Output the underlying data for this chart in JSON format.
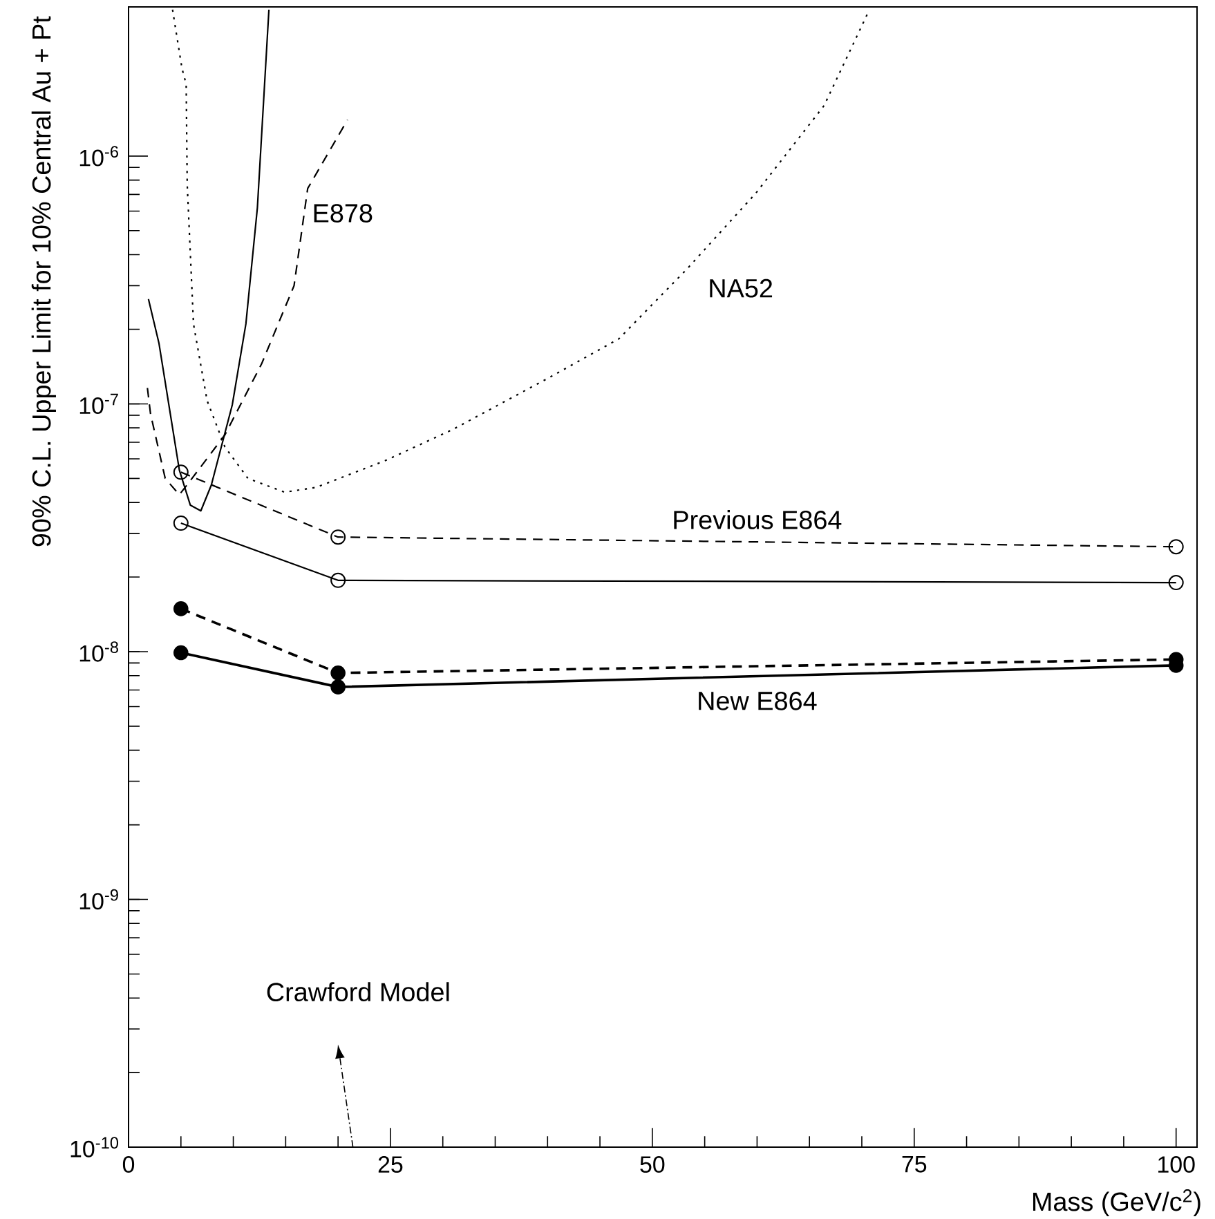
{
  "chart_data": {
    "type": "line",
    "xlabel": "Mass (GeV/c$^{2}$)",
    "ylabel": "90% C.L. Upper Limit for 10% Central Au + Pt",
    "log": "y",
    "grid": false,
    "xlim": [
      0,
      102
    ],
    "ylim": [
      1e-10,
      4e-06
    ],
    "xticks": [
      0,
      25,
      50,
      75,
      100
    ],
    "yticks": [
      {
        "value": 1e-10,
        "label": "10$^{-10}$"
      },
      {
        "value": 1e-09,
        "label": "10$^{-9}$"
      },
      {
        "value": 1e-08,
        "label": "10$^{-8}$"
      },
      {
        "value": 1e-07,
        "label": "10$^{-7}$"
      },
      {
        "value": 1e-06,
        "label": "10$^{-6}$"
      }
    ],
    "annotations": [
      "Crawford Model"
    ],
    "series": [
      {
        "name": "E878",
        "color": "#000000",
        "line_style": "dashed",
        "marker": "none",
        "x": [
          1.8,
          2.1,
          3.5,
          4.85,
          5.9,
          9.2,
          12.7,
          15.8,
          17.1,
          20.9
        ],
        "values": [
          1.16e-07,
          9.1e-08,
          5e-08,
          4.3e-08,
          4.9e-08,
          7.5e-08,
          1.45e-07,
          3e-07,
          7.4e-07,
          1.4e-06
        ]
      },
      {
        "color": "#000000",
        "line_style": "solid",
        "marker": "none",
        "x": [
          1.9,
          2.9,
          4.85,
          5.9,
          6.9,
          7.9,
          9.9,
          11.2,
          12.3,
          13.4
        ],
        "values": [
          2.65e-07,
          1.76e-07,
          5.4e-08,
          3.9e-08,
          3.7e-08,
          4.7e-08,
          9.9e-08,
          2.1e-07,
          6.2e-07,
          3.9e-06
        ]
      },
      {
        "name": "NA52",
        "color": "#000000",
        "line_style": "dotted",
        "marker": "none",
        "x": [
          4.2,
          5.1,
          5.5,
          5.6,
          6.2,
          7.5,
          9.2,
          11.4,
          14.9,
          17.9,
          24.5,
          31.0,
          40.2,
          46.8,
          53.3,
          59.9,
          66.4,
          70.6
        ],
        "values": [
          3.9e-06,
          2.26e-06,
          1.95e-06,
          7.7e-07,
          2.1e-07,
          1.03e-07,
          6.7e-08,
          5e-08,
          4.4e-08,
          4.6e-08,
          5.9e-08,
          7.9e-08,
          1.28e-07,
          1.83e-07,
          3.5e-07,
          7.1e-07,
          1.6e-06,
          3.8e-06
        ]
      },
      {
        "name": "Previous E864",
        "color": "#000000",
        "line_style": "dashed",
        "marker": "circle",
        "x": [
          5,
          20,
          100
        ],
        "values": [
          5.3e-08,
          2.9e-08,
          2.65e-08
        ]
      },
      {
        "color": "#000000",
        "line_style": "solid",
        "marker": "circle",
        "x": [
          5,
          20,
          100
        ],
        "values": [
          3.3e-08,
          1.94e-08,
          1.9e-08
        ]
      },
      {
        "color": "#000000",
        "line_style": "dashed",
        "marker": "dot",
        "x": [
          5,
          20,
          100
        ],
        "values": [
          1.49e-08,
          8.2e-09,
          9.3e-09
        ]
      },
      {
        "name": "New E864",
        "color": "#000000",
        "line_style": "solid",
        "marker": "dot",
        "x": [
          5,
          20,
          100
        ],
        "values": [
          9.9e-09,
          7.2e-09,
          8.8e-09
        ]
      }
    ]
  }
}
